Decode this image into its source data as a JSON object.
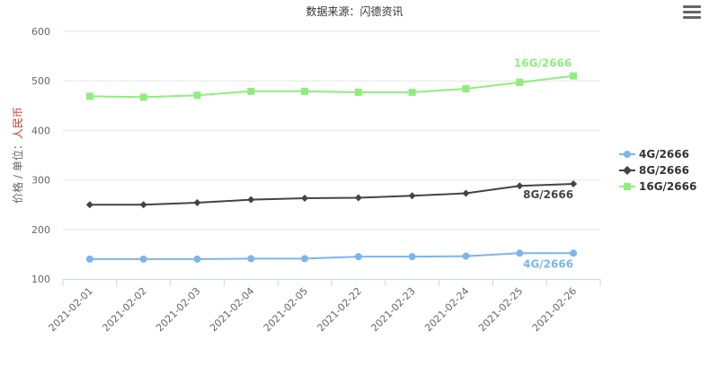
{
  "title": "数据来源：闪德资讯",
  "menu_icon": "hamburger-menu-icon",
  "chart_data": {
    "type": "line",
    "title": "数据来源：闪德资讯",
    "ylabel_prefix": "价格 / 单位：",
    "ylabel_unit": "人民币",
    "ylabel_unit_color": "#c0392b",
    "ylim": [
      100,
      600
    ],
    "yticks": [
      100,
      200,
      300,
      400,
      500,
      600
    ],
    "grid": true,
    "legend_position": "right",
    "categories": [
      "2021-02-01",
      "2021-02-02",
      "2021-02-03",
      "2021-02-04",
      "2021-02-05",
      "2021-02-22",
      "2021-02-23",
      "2021-02-24",
      "2021-02-25",
      "2021-02-26"
    ],
    "series": [
      {
        "name": "4G/2666",
        "color": "#7cb5ec",
        "marker": "circle",
        "values": [
          140,
          140,
          140,
          141,
          141,
          145,
          145,
          146,
          152,
          152
        ],
        "end_label": "4G/2666"
      },
      {
        "name": "8G/2666",
        "color": "#434348",
        "marker": "diamond",
        "values": [
          250,
          250,
          254,
          260,
          263,
          264,
          268,
          273,
          288,
          292
        ],
        "end_label": "8G/2666"
      },
      {
        "name": "16G/2666",
        "color": "#90ed7d",
        "marker": "square",
        "values": [
          469,
          467,
          471,
          479,
          479,
          477,
          477,
          484,
          497,
          510
        ],
        "end_label": "16G/2666"
      }
    ]
  }
}
